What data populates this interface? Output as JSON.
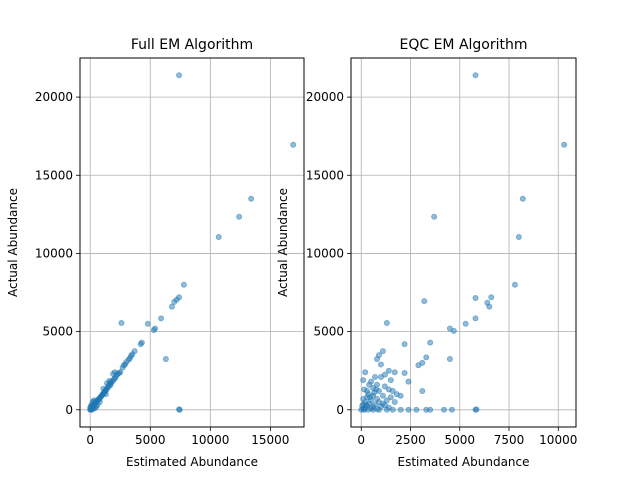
{
  "colors": {
    "marker": "#1f77b4",
    "grid": "#b0b0b0",
    "axes": "#000000"
  },
  "chart_data": [
    {
      "type": "scatter",
      "title": "Full EM Algorithm",
      "xlabel": "Estimated Abundance",
      "ylabel": "Actual Abundance",
      "xlim": [
        -850,
        17800
      ],
      "ylim": [
        -1100,
        22500
      ],
      "xticks": [
        0,
        5000,
        10000,
        15000
      ],
      "yticks": [
        0,
        5000,
        10000,
        15000,
        20000
      ],
      "grid": true,
      "marker_alpha": 0.5,
      "points": [
        [
          7400,
          21400
        ],
        [
          16900,
          16950
        ],
        [
          13400,
          13500
        ],
        [
          12400,
          12350
        ],
        [
          10700,
          11050
        ],
        [
          7800,
          8000
        ],
        [
          7400,
          7200
        ],
        [
          7200,
          7050
        ],
        [
          7000,
          6900
        ],
        [
          6800,
          6600
        ],
        [
          5900,
          5850
        ],
        [
          5400,
          5200
        ],
        [
          5300,
          5100
        ],
        [
          4800,
          5500
        ],
        [
          2600,
          5550
        ],
        [
          6300,
          3250
        ],
        [
          7400,
          30
        ],
        [
          7450,
          0
        ],
        [
          4300,
          4300
        ],
        [
          4200,
          4200
        ],
        [
          3700,
          3750
        ],
        [
          3500,
          3550
        ],
        [
          3400,
          3450
        ],
        [
          3300,
          3300
        ],
        [
          3200,
          3200
        ],
        [
          3000,
          3050
        ],
        [
          2900,
          2900
        ],
        [
          2800,
          2850
        ],
        [
          2700,
          2700
        ],
        [
          2500,
          2400
        ],
        [
          2400,
          2350
        ],
        [
          2300,
          2300
        ],
        [
          2200,
          2200
        ],
        [
          2100,
          2050
        ],
        [
          2050,
          2400
        ],
        [
          2000,
          2000
        ],
        [
          1950,
          1900
        ],
        [
          1900,
          2300
        ],
        [
          1800,
          1800
        ],
        [
          1750,
          1700
        ],
        [
          1700,
          1750
        ],
        [
          1650,
          1550
        ],
        [
          1600,
          1600
        ],
        [
          1500,
          1500
        ],
        [
          1450,
          1400
        ],
        [
          1400,
          1700
        ],
        [
          1350,
          1300
        ],
        [
          1300,
          1250
        ],
        [
          1250,
          1200
        ],
        [
          1200,
          1150
        ],
        [
          1150,
          1100
        ],
        [
          1100,
          1050
        ],
        [
          1050,
          1000
        ],
        [
          1000,
          950
        ],
        [
          950,
          900
        ],
        [
          900,
          850
        ],
        [
          850,
          800
        ],
        [
          800,
          750
        ],
        [
          750,
          700
        ],
        [
          700,
          650
        ],
        [
          650,
          650
        ],
        [
          600,
          600
        ],
        [
          550,
          550
        ],
        [
          500,
          500
        ],
        [
          450,
          450
        ],
        [
          400,
          400
        ],
        [
          350,
          350
        ],
        [
          300,
          300
        ],
        [
          250,
          250
        ],
        [
          200,
          200
        ],
        [
          150,
          150
        ],
        [
          100,
          100
        ],
        [
          50,
          50
        ],
        [
          20,
          20
        ],
        [
          0,
          0
        ],
        [
          300,
          600
        ],
        [
          600,
          300
        ],
        [
          500,
          200
        ],
        [
          200,
          500
        ],
        [
          100,
          300
        ],
        [
          400,
          100
        ],
        [
          800,
          500
        ],
        [
          1300,
          1000
        ],
        [
          1100,
          1350
        ],
        [
          1600,
          1850
        ],
        [
          250,
          80
        ],
        [
          80,
          250
        ],
        [
          150,
          0
        ],
        [
          0,
          150
        ],
        [
          350,
          500
        ]
      ]
    },
    {
      "type": "scatter",
      "title": "EQC EM Algorithm",
      "xlabel": "Estimated Abundance",
      "ylabel": "Actual Abundance",
      "xlim": [
        -520,
        10900
      ],
      "ylim": [
        -1100,
        22500
      ],
      "xticks": [
        0,
        2500,
        5000,
        7500,
        10000
      ],
      "yticks": [
        0,
        5000,
        10000,
        15000,
        20000
      ],
      "grid": true,
      "marker_alpha": 0.5,
      "points": [
        [
          5800,
          21400
        ],
        [
          10300,
          16950
        ],
        [
          8200,
          13500
        ],
        [
          3700,
          12350
        ],
        [
          8000,
          11050
        ],
        [
          7800,
          8000
        ],
        [
          6600,
          7200
        ],
        [
          5800,
          7150
        ],
        [
          6400,
          6850
        ],
        [
          6500,
          6600
        ],
        [
          3200,
          6950
        ],
        [
          5800,
          5850
        ],
        [
          5300,
          5500
        ],
        [
          4500,
          5200
        ],
        [
          4700,
          5050
        ],
        [
          1300,
          5550
        ],
        [
          3500,
          4300
        ],
        [
          4500,
          3250
        ],
        [
          3300,
          3350
        ],
        [
          3100,
          3000
        ],
        [
          2900,
          2850
        ],
        [
          2200,
          4200
        ],
        [
          1100,
          3750
        ],
        [
          900,
          3500
        ],
        [
          800,
          3250
        ],
        [
          1000,
          2900
        ],
        [
          2200,
          2350
        ],
        [
          1700,
          2400
        ],
        [
          1400,
          2500
        ],
        [
          1200,
          2250
        ],
        [
          1500,
          1900
        ],
        [
          1000,
          2100
        ],
        [
          700,
          2100
        ],
        [
          500,
          1800
        ],
        [
          800,
          1600
        ],
        [
          1200,
          1500
        ],
        [
          600,
          1400
        ],
        [
          900,
          1200
        ],
        [
          1400,
          1300
        ],
        [
          400,
          1600
        ],
        [
          200,
          2400
        ],
        [
          100,
          1900
        ],
        [
          300,
          1200
        ],
        [
          1600,
          1200
        ],
        [
          2000,
          900
        ],
        [
          2400,
          1800
        ],
        [
          3100,
          1200
        ],
        [
          600,
          900
        ],
        [
          1100,
          900
        ],
        [
          1500,
          800
        ],
        [
          300,
          800
        ],
        [
          100,
          700
        ],
        [
          800,
          700
        ],
        [
          1300,
          600
        ],
        [
          500,
          600
        ],
        [
          200,
          500
        ],
        [
          900,
          500
        ],
        [
          1700,
          500
        ],
        [
          400,
          400
        ],
        [
          100,
          350
        ],
        [
          700,
          350
        ],
        [
          1200,
          300
        ],
        [
          50,
          250
        ],
        [
          300,
          250
        ],
        [
          600,
          200
        ],
        [
          1000,
          200
        ],
        [
          1400,
          150
        ],
        [
          200,
          100
        ],
        [
          500,
          100
        ],
        [
          800,
          50
        ],
        [
          0,
          0
        ],
        [
          150,
          0
        ],
        [
          350,
          0
        ],
        [
          600,
          0
        ],
        [
          900,
          0
        ],
        [
          1300,
          0
        ],
        [
          1600,
          0
        ],
        [
          2000,
          0
        ],
        [
          2400,
          0
        ],
        [
          2800,
          0
        ],
        [
          3300,
          0
        ],
        [
          3500,
          0
        ],
        [
          4200,
          0
        ],
        [
          4600,
          0
        ],
        [
          5800,
          0
        ],
        [
          5850,
          30
        ],
        [
          100,
          50
        ],
        [
          250,
          300
        ],
        [
          450,
          800
        ],
        [
          650,
          1100
        ],
        [
          750,
          1300
        ],
        [
          350,
          1000
        ],
        [
          150,
          1300
        ],
        [
          1100,
          400
        ],
        [
          1800,
          1000
        ]
      ]
    }
  ]
}
